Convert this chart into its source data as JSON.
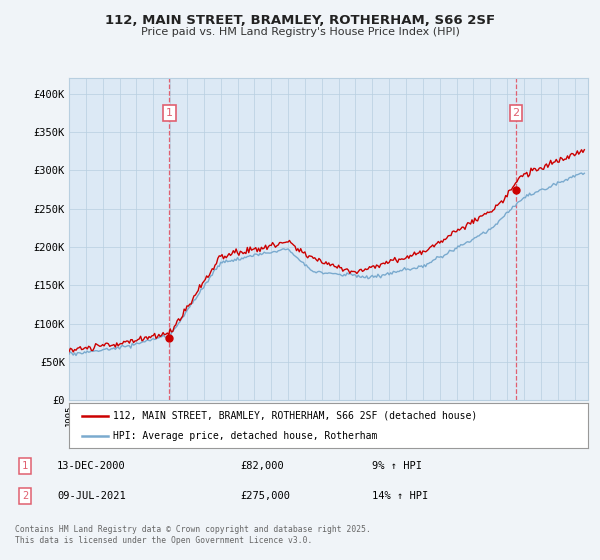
{
  "title": "112, MAIN STREET, BRAMLEY, ROTHERHAM, S66 2SF",
  "subtitle": "Price paid vs. HM Land Registry's House Price Index (HPI)",
  "background_color": "#f0f4f8",
  "plot_bg_color": "#dce9f5",
  "grid_color": "#b8cfe0",
  "sale1_x": 2000.96,
  "sale1_price": 82000,
  "sale2_x": 2021.52,
  "sale2_price": 275000,
  "legend_line1": "112, MAIN STREET, BRAMLEY, ROTHERHAM, S66 2SF (detached house)",
  "legend_line2": "HPI: Average price, detached house, Rotherham",
  "annotation1": [
    "1",
    "13-DEC-2000",
    "£82,000",
    "9% ↑ HPI"
  ],
  "annotation2": [
    "2",
    "09-JUL-2021",
    "£275,000",
    "14% ↑ HPI"
  ],
  "footer": "Contains HM Land Registry data © Crown copyright and database right 2025.\nThis data is licensed under the Open Government Licence v3.0.",
  "hpi_color": "#7aaace",
  "price_color": "#cc0000",
  "dashed_color": "#e06070",
  "marker_color": "#cc0000",
  "ylim": [
    0,
    420000
  ],
  "yticks": [
    0,
    50000,
    100000,
    150000,
    200000,
    250000,
    300000,
    350000,
    400000
  ],
  "ytick_labels": [
    "£0",
    "£50K",
    "£100K",
    "£150K",
    "£200K",
    "£250K",
    "£300K",
    "£350K",
    "£400K"
  ],
  "xlim_left": 1995.0,
  "xlim_right": 2025.8
}
